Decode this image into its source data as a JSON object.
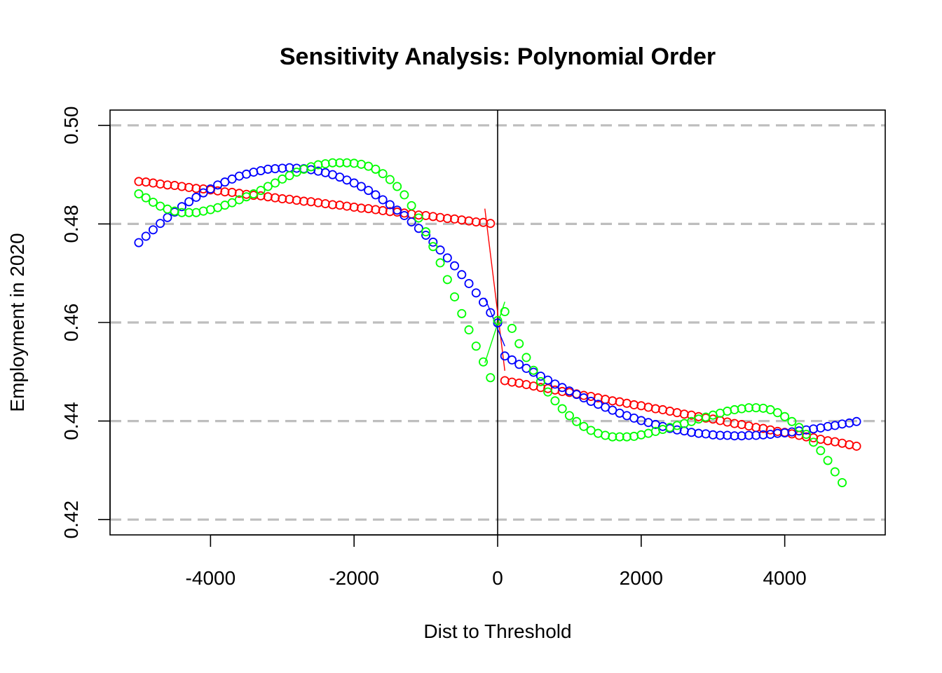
{
  "chart_data": {
    "type": "scatter",
    "title": "Sensitivity Analysis: Polynomial Order",
    "xlabel": "Dist to Threshold",
    "ylabel": "Employment in 2020",
    "xlim": [
      -5400,
      5400
    ],
    "ylim": [
      0.4169,
      0.5031
    ],
    "x_ticks": [
      -4000,
      -2000,
      0,
      2000,
      4000
    ],
    "x_tick_labels": [
      "-4000",
      "-2000",
      "0",
      "2000",
      "4000"
    ],
    "y_ticks": [
      0.42,
      0.44,
      0.46,
      0.48,
      0.5
    ],
    "y_tick_labels": [
      "0.42",
      "0.44",
      "0.46",
      "0.48",
      "0.50"
    ],
    "hlines": {
      "values": [
        0.42,
        0.44,
        0.46,
        0.48,
        0.5
      ],
      "style": "dashed",
      "color": "#bebebe"
    },
    "vline": {
      "x": 0,
      "color": "#000000"
    },
    "grid": false,
    "legend": "none",
    "marker": "open-circle",
    "x": [
      -5000,
      -4900,
      -4800,
      -4700,
      -4600,
      -4500,
      -4400,
      -4300,
      -4200,
      -4100,
      -4000,
      -3900,
      -3800,
      -3700,
      -3600,
      -3500,
      -3400,
      -3300,
      -3200,
      -3100,
      -3000,
      -2900,
      -2800,
      -2700,
      -2600,
      -2500,
      -2400,
      -2300,
      -2200,
      -2100,
      -2000,
      -1900,
      -1800,
      -1700,
      -1600,
      -1500,
      -1400,
      -1300,
      -1200,
      -1100,
      -1000,
      -900,
      -800,
      -700,
      -600,
      -500,
      -400,
      -300,
      -200,
      -100,
      0,
      100,
      200,
      300,
      400,
      500,
      600,
      700,
      800,
      900,
      1000,
      1100,
      1200,
      1300,
      1400,
      1500,
      1600,
      1700,
      1800,
      1900,
      2000,
      2100,
      2200,
      2300,
      2400,
      2500,
      2600,
      2700,
      2800,
      2900,
      3000,
      3100,
      3200,
      3300,
      3400,
      3500,
      3600,
      3700,
      3800,
      3900,
      4000,
      4100,
      4200,
      4300,
      4400,
      4500,
      4600,
      4700,
      4800,
      4900,
      5000
    ],
    "series": [
      {
        "color": "#ff0000",
        "values": [
          0.4886,
          0.4885,
          0.4883,
          0.4881,
          0.4879,
          0.4878,
          0.4876,
          0.4874,
          0.4872,
          0.4871,
          0.4869,
          0.4867,
          0.4865,
          0.4864,
          0.4862,
          0.486,
          0.4858,
          0.4857,
          0.4855,
          0.4853,
          0.4851,
          0.485,
          0.4848,
          0.4846,
          0.4845,
          0.4843,
          0.4841,
          0.4839,
          0.4838,
          0.4836,
          0.4834,
          0.4832,
          0.4831,
          0.4829,
          0.4827,
          0.4825,
          0.4824,
          0.4822,
          0.482,
          0.4818,
          0.4817,
          0.4815,
          0.4813,
          0.4811,
          0.481,
          0.4808,
          0.4806,
          0.4804,
          0.4803,
          0.4801,
          null,
          0.4482,
          0.4479,
          0.4477,
          0.4474,
          0.4471,
          0.4468,
          0.4466,
          0.4463,
          0.446,
          0.4458,
          0.4455,
          0.4452,
          0.445,
          0.4447,
          0.4444,
          0.4441,
          0.4439,
          0.4436,
          0.4433,
          0.4431,
          0.4428,
          0.4425,
          0.4423,
          0.442,
          0.4417,
          0.4414,
          0.4412,
          0.4409,
          0.4406,
          0.4404,
          0.4401,
          0.4398,
          0.4395,
          0.4393,
          0.439,
          0.4387,
          0.4385,
          0.4382,
          0.4379,
          0.4377,
          0.4374,
          0.4371,
          0.4368,
          0.4366,
          0.4363,
          0.436,
          0.4358,
          0.4355,
          0.4352,
          0.4349
        ]
      },
      {
        "color": "#0000ff",
        "values": [
          0.4762,
          0.4775,
          0.4788,
          0.4801,
          0.4813,
          0.4824,
          0.4835,
          0.4845,
          0.4854,
          0.4863,
          0.4871,
          0.4879,
          0.4885,
          0.4891,
          0.4897,
          0.4901,
          0.4905,
          0.4908,
          0.4911,
          0.4912,
          0.4913,
          0.4914,
          0.4913,
          0.4912,
          0.491,
          0.4907,
          0.4904,
          0.49,
          0.4895,
          0.4889,
          0.4883,
          0.4876,
          0.4868,
          0.4859,
          0.4849,
          0.4839,
          0.4828,
          0.4817,
          0.4804,
          0.4791,
          0.4777,
          0.4763,
          0.4747,
          0.4731,
          0.4715,
          0.4697,
          0.4679,
          0.466,
          0.4641,
          0.462,
          0.4599,
          0.4532,
          0.4524,
          0.4515,
          0.4507,
          0.4499,
          0.4491,
          0.4483,
          0.4475,
          0.4468,
          0.4461,
          0.4454,
          0.4447,
          0.444,
          0.4434,
          0.4428,
          0.4422,
          0.4416,
          0.4411,
          0.4406,
          0.4401,
          0.4397,
          0.4393,
          0.4389,
          0.4385,
          0.4382,
          0.438,
          0.4377,
          0.4375,
          0.4374,
          0.4372,
          0.4371,
          0.4371,
          0.437,
          0.437,
          0.4371,
          0.4371,
          0.4372,
          0.4373,
          0.4375,
          0.4376,
          0.4378,
          0.438,
          0.4382,
          0.4384,
          0.4386,
          0.4389,
          0.4391,
          0.4394,
          0.4396,
          0.4399
        ]
      },
      {
        "color": "#00ff00",
        "values": [
          0.4861,
          0.4853,
          0.4844,
          0.4836,
          0.483,
          0.4826,
          0.4823,
          0.4823,
          0.4823,
          0.4826,
          0.4829,
          0.4833,
          0.4838,
          0.4843,
          0.4849,
          0.4855,
          0.4861,
          0.4868,
          0.4876,
          0.4883,
          0.4891,
          0.4898,
          0.4905,
          0.4911,
          0.4916,
          0.492,
          0.4922,
          0.4924,
          0.4924,
          0.4924,
          0.4923,
          0.4921,
          0.4917,
          0.4911,
          0.4902,
          0.489,
          0.4876,
          0.4859,
          0.4837,
          0.4812,
          0.4784,
          0.4754,
          0.4721,
          0.4687,
          0.4652,
          0.4618,
          0.4585,
          0.4552,
          0.452,
          0.4488,
          0.4604,
          0.4622,
          0.4588,
          0.4557,
          0.4529,
          0.4503,
          0.448,
          0.4459,
          0.4441,
          0.4425,
          0.4411,
          0.4399,
          0.4389,
          0.4381,
          0.4375,
          0.4371,
          0.4368,
          0.4368,
          0.4368,
          0.4369,
          0.4372,
          0.4375,
          0.4379,
          0.4383,
          0.4387,
          0.4391,
          0.4395,
          0.4399,
          0.4404,
          0.4408,
          0.4412,
          0.4416,
          0.442,
          0.4423,
          0.4425,
          0.4427,
          0.4427,
          0.4426,
          0.4423,
          0.4417,
          0.4409,
          0.4399,
          0.4387,
          0.4373,
          0.4357,
          0.434,
          0.432,
          0.4297,
          0.4275
        ]
      }
    ]
  }
}
